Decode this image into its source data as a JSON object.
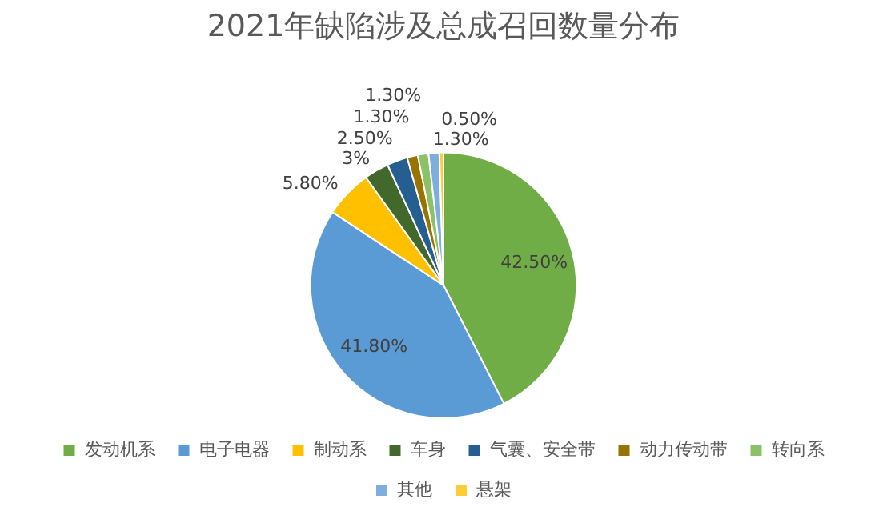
{
  "chart_data": {
    "type": "pie",
    "title": "2021年缺陷涉及总成召回数量分布",
    "categories": [
      "发动机系",
      "电子电器",
      "制动系",
      "车身",
      "气囊、安全带",
      "动力传动带",
      "转向系",
      "其他",
      "悬架"
    ],
    "values": [
      42.5,
      41.8,
      5.8,
      3,
      2.5,
      1.3,
      1.3,
      1.3,
      0.5
    ],
    "colors": [
      "#70ad47",
      "#5b9bd5",
      "#ffc000",
      "#43682b",
      "#255e91",
      "#997300",
      "#8cc168",
      "#7cafdd",
      "#ffcd33"
    ],
    "value_labels": [
      "42.50%",
      "41.80%",
      "5.80%",
      "3%",
      "2.50%",
      "1.30%",
      "1.30%",
      "1.30%",
      "0.50%"
    ],
    "legend": "bottom"
  }
}
